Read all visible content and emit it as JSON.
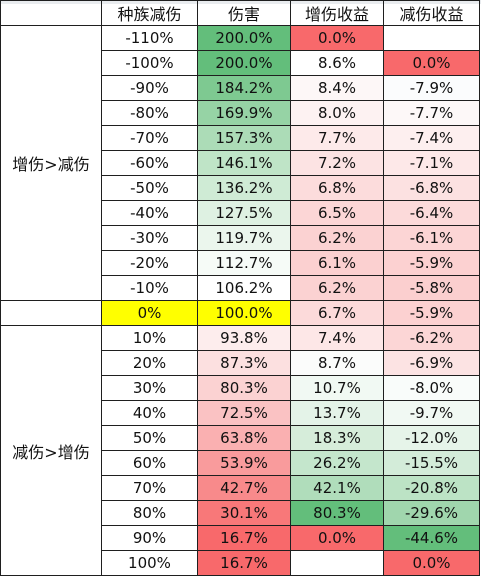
{
  "headers": [
    "",
    "种族减伤",
    "伤害",
    "增伤收益",
    "减伤收益"
  ],
  "groups": [
    {
      "label": "增伤>减伤",
      "rows": [
        {
          "reduction": "-110%",
          "damage": "200.0%",
          "damage_bg": "#63be7b",
          "inc": "0.0%",
          "inc_bg": "#f8696b",
          "red": "",
          "red_bg": "#ffffff"
        },
        {
          "reduction": "-100%",
          "damage": "200.0%",
          "damage_bg": "#63be7b",
          "inc": "8.6%",
          "inc_bg": "#ffffff",
          "red": "0.0%",
          "red_bg": "#f8696b"
        },
        {
          "reduction": "-90%",
          "damage": "184.2%",
          "damage_bg": "#7ec991",
          "inc": "8.4%",
          "inc_bg": "#fdf7f7",
          "red": "-7.9%",
          "red_bg": "#fbfcfd"
        },
        {
          "reduction": "-80%",
          "damage": "169.9%",
          "damage_bg": "#96d3a5",
          "inc": "8.0%",
          "inc_bg": "#fdf2f2",
          "red": "-7.7%",
          "red_bg": "#fdf8f8"
        },
        {
          "reduction": "-70%",
          "damage": "157.3%",
          "damage_bg": "#acdcb7",
          "inc": "7.7%",
          "inc_bg": "#fdeaea",
          "red": "-7.4%",
          "red_bg": "#fdefef"
        },
        {
          "reduction": "-60%",
          "damage": "146.1%",
          "damage_bg": "#bfe4c7",
          "inc": "7.2%",
          "inc_bg": "#fce3e3",
          "red": "-7.1%",
          "red_bg": "#fde8e8"
        },
        {
          "reduction": "-50%",
          "damage": "136.2%",
          "damage_bg": "#cfebd5",
          "inc": "6.8%",
          "inc_bg": "#fcdcdc",
          "red": "-6.8%",
          "red_bg": "#fce1e1"
        },
        {
          "reduction": "-40%",
          "damage": "127.5%",
          "damage_bg": "#def1e2",
          "inc": "6.5%",
          "inc_bg": "#fcd6d6",
          "red": "-6.4%",
          "red_bg": "#fcdada"
        },
        {
          "reduction": "-30%",
          "damage": "119.7%",
          "damage_bg": "#ebf6ed",
          "inc": "6.2%",
          "inc_bg": "#fbd2d2",
          "red": "-6.1%",
          "red_bg": "#fcd5d5"
        },
        {
          "reduction": "-20%",
          "damage": "112.7%",
          "damage_bg": "#f6fbf7",
          "inc": "6.1%",
          "inc_bg": "#fbd0d0",
          "red": "-5.9%",
          "red_bg": "#fcd1d1"
        },
        {
          "reduction": "-10%",
          "damage": "106.2%",
          "damage_bg": "#ffffff",
          "inc": "6.2%",
          "inc_bg": "#fbd2d2",
          "red": "-5.8%",
          "red_bg": "#fbcfcf"
        }
      ]
    },
    {
      "label": "",
      "rows": [
        {
          "reduction": "0%",
          "reduction_bg": "#ffff00",
          "damage": "100.0%",
          "damage_bg": "#ffff00",
          "inc": "6.7%",
          "inc_bg": "#fcdada",
          "red": "-5.9%",
          "red_bg": "#fcd1d1"
        }
      ]
    },
    {
      "label": "减伤>增伤",
      "rows": [
        {
          "reduction": "10%",
          "damage": "93.8%",
          "damage_bg": "#fdeded",
          "inc": "7.4%",
          "inc_bg": "#fde7e7",
          "red": "-6.2%",
          "red_bg": "#fcd6d6"
        },
        {
          "reduction": "20%",
          "damage": "87.3%",
          "damage_bg": "#fce0e0",
          "inc": "8.7%",
          "inc_bg": "#fbfcfb",
          "red": "-6.9%",
          "red_bg": "#fce3e3"
        },
        {
          "reduction": "30%",
          "damage": "80.3%",
          "damage_bg": "#fbd2d2",
          "inc": "10.7%",
          "inc_bg": "#f1f9f3",
          "red": "-8.0%",
          "red_bg": "#f9fcfa"
        },
        {
          "reduction": "40%",
          "damage": "72.5%",
          "damage_bg": "#fac2c3",
          "inc": "13.7%",
          "inc_bg": "#e4f3e8",
          "red": "-9.7%",
          "red_bg": "#f1f9f3"
        },
        {
          "reduction": "50%",
          "damage": "63.8%",
          "damage_bg": "#fab0b1",
          "inc": "18.3%",
          "inc_bg": "#d6edda",
          "red": "-12.0%",
          "red_bg": "#e6f4e9"
        },
        {
          "reduction": "60%",
          "damage": "53.9%",
          "damage_bg": "#f99b9c",
          "inc": "26.2%",
          "inc_bg": "#c4e6cc",
          "red": "-15.5%",
          "red_bg": "#d3ecd9"
        },
        {
          "reduction": "70%",
          "damage": "42.7%",
          "damage_bg": "#f88a8b",
          "inc": "42.1%",
          "inc_bg": "#b0ddbb",
          "red": "-20.8%",
          "red_bg": "#bce3c5"
        },
        {
          "reduction": "80%",
          "damage": "30.1%",
          "damage_bg": "#f87879",
          "inc": "80.3%",
          "inc_bg": "#63be7b",
          "red": "-29.6%",
          "red_bg": "#a0d6ad"
        },
        {
          "reduction": "90%",
          "damage": "16.7%",
          "damage_bg": "#f8696b",
          "inc": "0.0%",
          "inc_bg": "#f8696b",
          "red": "-44.6%",
          "red_bg": "#63be7b"
        },
        {
          "reduction": "100%",
          "damage": "16.7%",
          "damage_bg": "#f8696b",
          "inc": "",
          "inc_bg": "#ffffff",
          "red": "0.0%",
          "red_bg": "#f8696b"
        }
      ]
    }
  ]
}
